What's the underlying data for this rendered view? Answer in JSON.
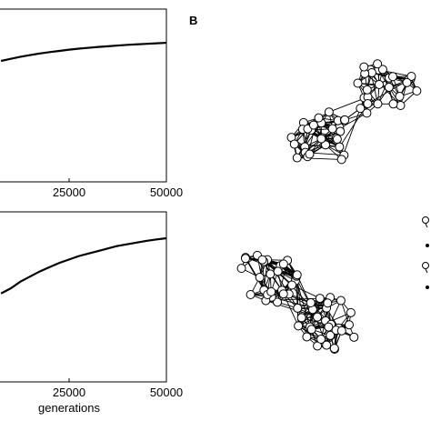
{
  "chart_data": [
    {
      "type": "line",
      "xlim": [
        0,
        50000
      ],
      "ylim": [
        0,
        1
      ],
      "xticks": [
        25000,
        50000
      ],
      "x": [
        7500,
        10000,
        12500,
        15000,
        17500,
        20000,
        22500,
        25000,
        27500,
        30000,
        32500,
        35000,
        37500,
        40000,
        42500,
        45000,
        47500,
        50000
      ],
      "series": [
        {
          "color": "#000000",
          "values": [
            0.7,
            0.712,
            0.724,
            0.734,
            0.743,
            0.751,
            0.758,
            0.765,
            0.771,
            0.776,
            0.781,
            0.785,
            0.789,
            0.793,
            0.796,
            0.799,
            0.802,
            0.805
          ]
        }
      ]
    },
    {
      "type": "line",
      "xlim": [
        0,
        50000
      ],
      "ylim": [
        0,
        1
      ],
      "xticks": [
        25000,
        50000
      ],
      "xlabel": "generations",
      "x": [
        7500,
        10000,
        12500,
        15000,
        17500,
        20000,
        22500,
        25000,
        27500,
        30000,
        32500,
        35000,
        37500,
        40000,
        42500,
        45000,
        47500,
        50000
      ],
      "series": [
        {
          "color": "#000000",
          "values": [
            0.52,
            0.55,
            0.59,
            0.62,
            0.65,
            0.675,
            0.7,
            0.72,
            0.74,
            0.755,
            0.77,
            0.785,
            0.8,
            0.81,
            0.82,
            0.83,
            0.838,
            0.845
          ]
        }
      ]
    }
  ],
  "panel_b_label": "B"
}
